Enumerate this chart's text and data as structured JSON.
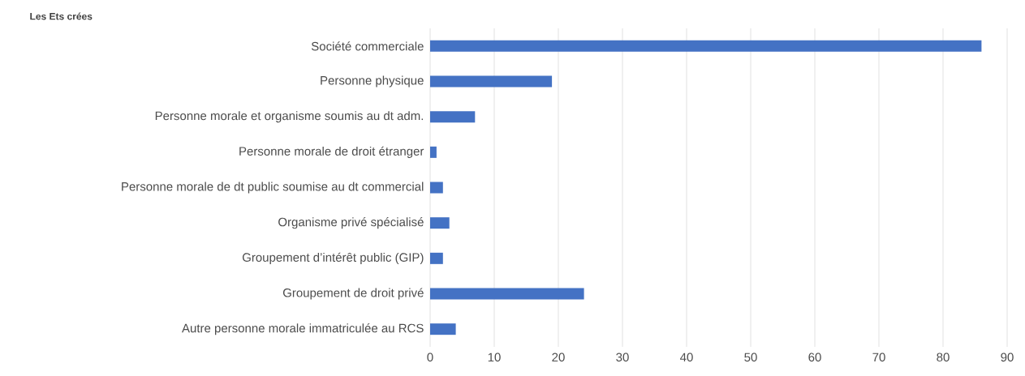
{
  "chart_data": {
    "type": "bar",
    "orientation": "horizontal",
    "title": "Les Ets crées",
    "categories": [
      "Société commerciale",
      "Personne physique",
      "Personne morale et organisme soumis au dt adm.",
      "Personne morale de droit étranger",
      "Personne morale de dt public soumise au dt commercial",
      "Organisme privé spécialisé",
      "Groupement d’intérêt public (GIP)",
      "Groupement de droit privé",
      "Autre personne morale immatriculée au RCS"
    ],
    "values": [
      86,
      19,
      7,
      1,
      2,
      3,
      2,
      24,
      4
    ],
    "color": "#4472c4",
    "xlim": [
      0,
      90
    ],
    "xticks": [
      0,
      10,
      20,
      30,
      40,
      50,
      60,
      70,
      80,
      90
    ],
    "grid": "x"
  }
}
